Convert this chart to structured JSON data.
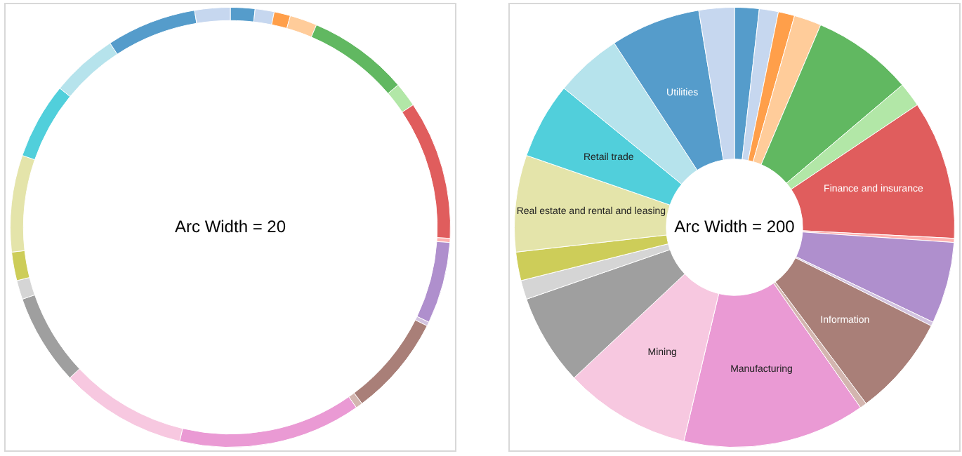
{
  "chart_data": [
    {
      "type": "donut",
      "title": "Arc Width = 20",
      "categories": [
        null,
        null,
        null,
        null,
        null,
        null,
        null,
        null,
        null,
        null,
        null,
        null,
        null,
        null,
        null,
        null,
        null,
        null,
        null,
        null,
        null,
        null
      ],
      "values": [
        1.8,
        1.4,
        1.2,
        2.0,
        7.4,
        1.8,
        10.2,
        0.3,
        6.0,
        0.3,
        7.4,
        0.5,
        13.4,
        9.3,
        6.7,
        1.4,
        2.1,
        7.1,
        5.6,
        4.9,
        6.6,
        2.6
      ],
      "colors": [
        "#559ccb",
        "#c6d7ef",
        "#ff9f4a",
        "#ffcc9a",
        "#61b861",
        "#b2e7a7",
        "#e05d5d",
        "#ffb2b0",
        "#af8fcd",
        "#d3c4e0",
        "#a97f78",
        "#d3b5af",
        "#ea9ad4",
        "#f7c8e0",
        "#9f9f9f",
        "#d5d5d5",
        "#cdcd59",
        "#e4e4aa",
        "#51cfdb",
        "#b6e3ec",
        "#559ccb",
        "#c6d7ef"
      ],
      "legend": false
    },
    {
      "type": "donut",
      "title": "Arc Width = 200",
      "categories": [
        null,
        null,
        null,
        null,
        null,
        null,
        "Finance and insurance",
        null,
        null,
        null,
        "Information",
        null,
        "Manufacturing",
        "Mining",
        null,
        null,
        null,
        "Real estate and rental and leasing",
        "Retail trade",
        null,
        "Utilities",
        null
      ],
      "values": [
        1.8,
        1.4,
        1.2,
        2.0,
        7.4,
        1.8,
        10.2,
        0.3,
        6.0,
        0.3,
        7.4,
        0.5,
        13.4,
        9.3,
        6.7,
        1.4,
        2.1,
        7.1,
        5.6,
        4.9,
        6.6,
        2.6
      ],
      "colors": [
        "#559ccb",
        "#c6d7ef",
        "#ff9f4a",
        "#ffcc9a",
        "#61b861",
        "#b2e7a7",
        "#e05d5d",
        "#ffb2b0",
        "#af8fcd",
        "#d3c4e0",
        "#a97f78",
        "#d3b5af",
        "#ea9ad4",
        "#f7c8e0",
        "#9f9f9f",
        "#d5d5d5",
        "#cdcd59",
        "#e4e4aa",
        "#51cfdb",
        "#b6e3ec",
        "#559ccb",
        "#c6d7ef"
      ],
      "legend": false
    }
  ]
}
